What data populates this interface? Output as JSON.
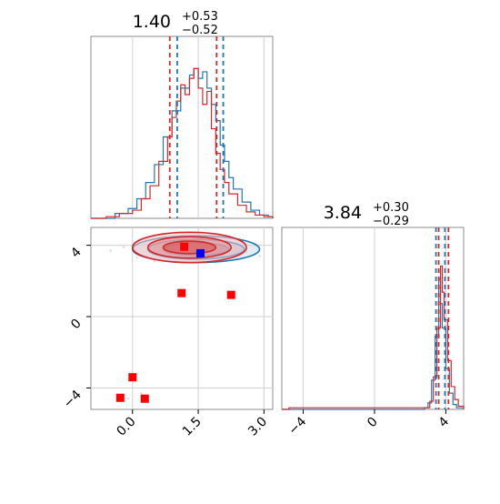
{
  "chart_data": [
    {
      "type": "histogram",
      "panel": "marginal-param-1",
      "title": {
        "value": "1.40",
        "plus": "+0.53",
        "minus": "−0.52"
      },
      "xlim": [
        -0.95,
        3.2
      ],
      "x_ticks": [],
      "quantiles": {
        "red": [
          0.85,
          1.92
        ],
        "blue": [
          1.02,
          2.07
        ]
      },
      "series": [
        {
          "name": "",
          "color": "#1f77b4",
          "bins": [
            [
              -0.95,
              0.0
            ],
            [
              -0.4,
              0.03
            ],
            [
              -0.1,
              0.06
            ],
            [
              0.1,
              0.12
            ],
            [
              0.3,
              0.22
            ],
            [
              0.5,
              0.33
            ],
            [
              0.7,
              0.5
            ],
            [
              0.9,
              0.66
            ],
            [
              1.1,
              0.8
            ],
            [
              1.3,
              0.88
            ],
            [
              1.4,
              0.92
            ],
            [
              1.5,
              0.86
            ],
            [
              1.6,
              0.9
            ],
            [
              1.7,
              0.8
            ],
            [
              1.8,
              0.7
            ],
            [
              1.9,
              0.6
            ],
            [
              2.0,
              0.45
            ],
            [
              2.1,
              0.35
            ],
            [
              2.2,
              0.25
            ],
            [
              2.3,
              0.18
            ],
            [
              2.5,
              0.1
            ],
            [
              2.7,
              0.05
            ],
            [
              2.9,
              0.02
            ],
            [
              3.1,
              0.01
            ]
          ]
        },
        {
          "name": "",
          "color": "#d62728",
          "bins": [
            [
              -0.95,
              0.0
            ],
            [
              -0.6,
              0.01
            ],
            [
              -0.3,
              0.03
            ],
            [
              0.0,
              0.05
            ],
            [
              0.2,
              0.12
            ],
            [
              0.4,
              0.2
            ],
            [
              0.6,
              0.35
            ],
            [
              0.8,
              0.5
            ],
            [
              0.9,
              0.62
            ],
            [
              1.0,
              0.72
            ],
            [
              1.1,
              0.82
            ],
            [
              1.2,
              0.76
            ],
            [
              1.3,
              0.86
            ],
            [
              1.4,
              0.92
            ],
            [
              1.5,
              0.8
            ],
            [
              1.6,
              0.7
            ],
            [
              1.7,
              0.78
            ],
            [
              1.8,
              0.55
            ],
            [
              1.9,
              0.4
            ],
            [
              2.0,
              0.3
            ],
            [
              2.1,
              0.22
            ],
            [
              2.2,
              0.15
            ],
            [
              2.4,
              0.08
            ],
            [
              2.6,
              0.04
            ],
            [
              2.8,
              0.02
            ],
            [
              3.0,
              0.01
            ]
          ]
        }
      ]
    },
    {
      "type": "scatter",
      "panel": "joint-param-1-vs-param-2",
      "xlim": [
        -0.95,
        3.2
      ],
      "ylim": [
        -5.2,
        5.0
      ],
      "x_ticks": [
        "0.0",
        "1.5",
        "3.0"
      ],
      "x_tick_values": [
        0,
        1.5,
        3.0
      ],
      "y_ticks": [
        "−4",
        "0",
        "4"
      ],
      "y_tick_values": [
        -4,
        0,
        4
      ],
      "grid": true,
      "contours": [
        {
          "color": "#1f77b4",
          "center": [
            1.45,
            3.78
          ],
          "rx": [
            1.45,
            1.1,
            0.75
          ],
          "ry": [
            0.75,
            0.55,
            0.35
          ]
        },
        {
          "color": "#d62728",
          "center": [
            1.3,
            3.88
          ],
          "rx": [
            1.3,
            0.95,
            0.6
          ],
          "ry": [
            0.85,
            0.6,
            0.35
          ]
        }
      ],
      "markers": [
        {
          "color": "#ff0000",
          "x": 1.18,
          "y": 3.92
        },
        {
          "color": "#ff0000",
          "x": 1.12,
          "y": 1.32
        },
        {
          "color": "#ff0000",
          "x": 2.25,
          "y": 1.22
        },
        {
          "color": "#ff0000",
          "x": 0.0,
          "y": -3.4
        },
        {
          "color": "#ff0000",
          "x": -0.28,
          "y": -4.55
        },
        {
          "color": "#ff0000",
          "x": 0.28,
          "y": -4.6
        },
        {
          "color": "#0000ff",
          "x": 1.55,
          "y": 3.55
        }
      ]
    },
    {
      "type": "histogram",
      "panel": "marginal-param-2",
      "title": {
        "value": "3.84",
        "plus": "+0.30",
        "minus": "−0.29"
      },
      "xlim": [
        -5.2,
        5.0
      ],
      "x_ticks": [
        "−4",
        "0",
        "4"
      ],
      "x_tick_values": [
        -4,
        0,
        4
      ],
      "quantiles": {
        "red": [
          3.6,
          4.15
        ],
        "blue": [
          3.45,
          3.95
        ]
      },
      "series": [
        {
          "name": "",
          "color": "#1f77b4",
          "bins": [
            [
              -5.2,
              0.0
            ],
            [
              2.8,
              0.01
            ],
            [
              3.0,
              0.04
            ],
            [
              3.2,
              0.18
            ],
            [
              3.4,
              0.45
            ],
            [
              3.6,
              0.8
            ],
            [
              3.7,
              0.65
            ],
            [
              3.8,
              0.5
            ],
            [
              4.0,
              0.25
            ],
            [
              4.2,
              0.1
            ],
            [
              4.4,
              0.03
            ],
            [
              4.6,
              0.01
            ]
          ]
        },
        {
          "name": "",
          "color": "#d62728",
          "bins": [
            [
              -5.2,
              0.0
            ],
            [
              -4.8,
              0.01
            ],
            [
              2.9,
              0.01
            ],
            [
              3.1,
              0.05
            ],
            [
              3.3,
              0.2
            ],
            [
              3.5,
              0.5
            ],
            [
              3.7,
              0.88
            ],
            [
              3.8,
              0.72
            ],
            [
              3.9,
              0.55
            ],
            [
              4.1,
              0.3
            ],
            [
              4.3,
              0.14
            ],
            [
              4.5,
              0.06
            ],
            [
              4.7,
              0.02
            ]
          ]
        }
      ]
    }
  ]
}
